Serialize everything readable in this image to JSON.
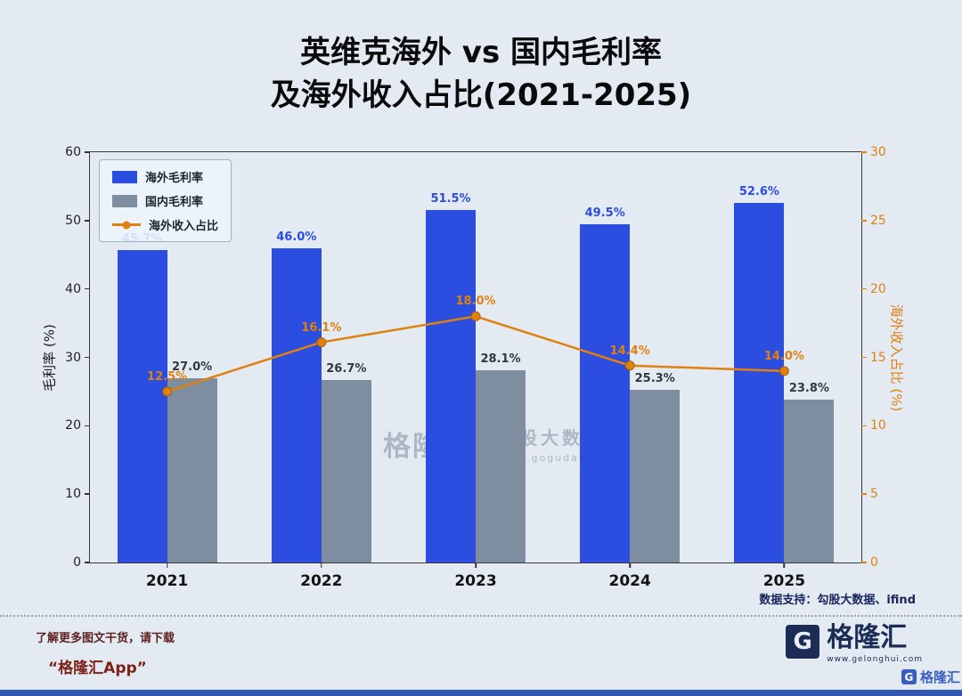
{
  "title": {
    "line1": "英维克海外 vs 国内毛利率",
    "line2": "及海外收入占比(2021-2025)"
  },
  "chart_data": {
    "type": "bar+line",
    "categories": [
      "2021",
      "2022",
      "2023",
      "2024",
      "2025"
    ],
    "series": [
      {
        "name": "海外毛利率",
        "type": "bar",
        "axis": "left",
        "color": "#2b4de0",
        "label_color": "#2b4de0",
        "values": [
          45.7,
          46.0,
          51.5,
          49.5,
          52.6
        ],
        "labels": [
          "45.7%",
          "46.0%",
          "51.5%",
          "49.5%",
          "52.6%"
        ]
      },
      {
        "name": "国内毛利率",
        "type": "bar",
        "axis": "left",
        "color": "#7f8da0",
        "label_color": "#33383f",
        "values": [
          27.0,
          26.7,
          28.1,
          25.3,
          23.8
        ],
        "labels": [
          "27.0%",
          "26.7%",
          "28.1%",
          "25.3%",
          "23.8%"
        ]
      },
      {
        "name": "海外收入占比",
        "type": "line",
        "axis": "right",
        "color": "#e0810f",
        "label_color": "#e0810f",
        "values": [
          12.5,
          16.1,
          18.0,
          14.4,
          14.0
        ],
        "labels": [
          "12.5%",
          "16.1%",
          "18.0%",
          "14.4%",
          "14.0%"
        ]
      }
    ],
    "left_axis": {
      "label": "毛利率 (%)",
      "min": 0,
      "max": 60,
      "ticks": [
        0,
        10,
        20,
        30,
        40,
        50,
        60
      ]
    },
    "right_axis": {
      "label": "海外收入占比 (%)",
      "min": 0,
      "max": 30,
      "ticks": [
        0,
        5,
        10,
        15,
        20,
        25,
        30
      ],
      "color": "#e0810f"
    },
    "legend_position": "upper-left",
    "grid": false
  },
  "watermark": {
    "logo_letter": "G",
    "brand": "格隆汇",
    "name": "勾股大数据",
    "url": "www.gogudata.com"
  },
  "source_note": "数据支持：勾股大数据、ifind",
  "footer": {
    "promo_line1": "了解更多图文干货，请下载",
    "promo_line2": "“格隆汇App”",
    "logo_letter": "G",
    "logo_text": "格隆汇",
    "logo_url": "www.gelonghui.com",
    "corner_logo_letter": "G",
    "corner_logo_text": "格隆汇"
  },
  "colors": {
    "background": "#e3eaf2",
    "bar_overseas": "#2b4de0",
    "bar_domestic": "#7f8da0",
    "line_income": "#e0810f",
    "brand_navy": "#1b2c55",
    "promo_red": "#7d2018",
    "bottom_strip_blue": "#3158ae"
  }
}
